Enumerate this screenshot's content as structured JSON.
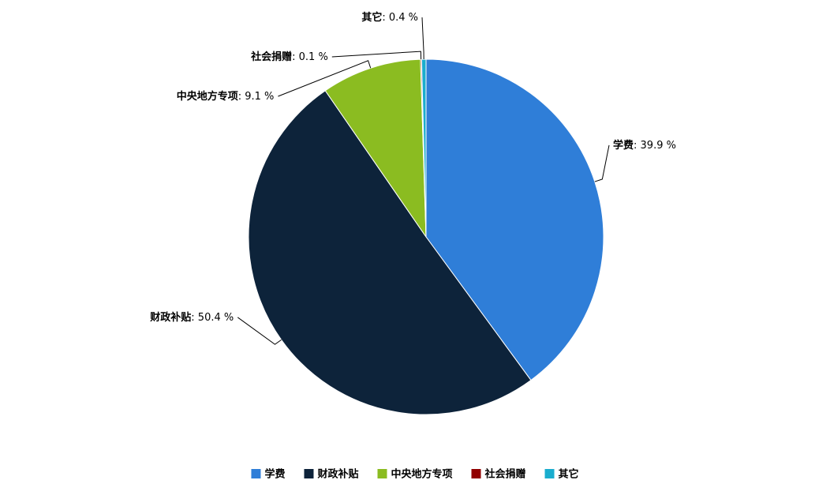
{
  "chart_data": {
    "type": "pie",
    "categories": [
      "学费",
      "财政补贴",
      "中央地方专项",
      "社会捐赠",
      "其它"
    ],
    "values": [
      39.9,
      50.4,
      9.1,
      0.1,
      0.4
    ],
    "value_labels": [
      ": 39.9 %",
      ": 50.4 %",
      ": 9.1 %",
      ": 0.1 %",
      ": 0.4 %"
    ],
    "colors": [
      "#2f7ed8",
      "#0d233a",
      "#8bbc21",
      "#910000",
      "#1aadce"
    ],
    "legend": "bottom"
  }
}
